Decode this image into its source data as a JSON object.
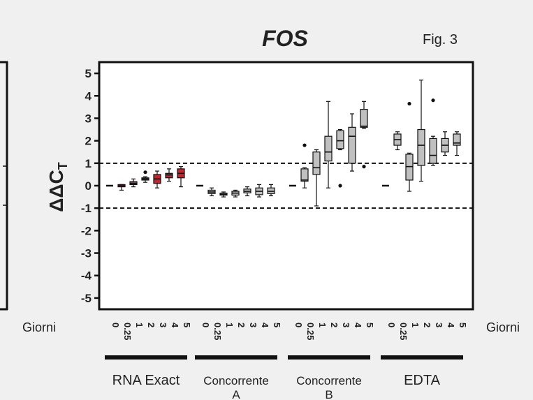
{
  "figure_label": "Fig. 3",
  "chart_data": {
    "type": "boxplot",
    "title": "FOS",
    "ylabel_main": "ΔΔC",
    "ylabel_sub": "T",
    "xlabel_left": "Giorni",
    "xlabel_right": "Giorni",
    "ylim": [
      -5.5,
      5.5
    ],
    "yticks": [
      5,
      4,
      3,
      2,
      1,
      0,
      -1,
      -2,
      -3,
      -4,
      -5
    ],
    "reference_lines": [
      1,
      -1
    ],
    "day_labels": [
      "0",
      "0.25",
      "1",
      "2",
      "3",
      "4",
      "5"
    ],
    "groups": [
      {
        "name": "RNA Exact",
        "fill": "#c8232c",
        "boxes": [
          {
            "day": "0",
            "min": 0,
            "q1": 0,
            "median": 0,
            "q3": 0,
            "max": 0,
            "outliers": []
          },
          {
            "day": "0.25",
            "min": -0.2,
            "q1": -0.05,
            "median": 0,
            "q3": 0.05,
            "max": 0.05,
            "outliers": []
          },
          {
            "day": "1",
            "min": -0.05,
            "q1": 0.05,
            "median": 0.1,
            "q3": 0.18,
            "max": 0.3,
            "outliers": []
          },
          {
            "day": "2",
            "min": 0.15,
            "q1": 0.25,
            "median": 0.3,
            "q3": 0.35,
            "max": 0.4,
            "outliers": [
              0.6
            ]
          },
          {
            "day": "3",
            "min": -0.1,
            "q1": 0.1,
            "median": 0.3,
            "q3": 0.5,
            "max": 0.65,
            "outliers": []
          },
          {
            "day": "4",
            "min": 0.2,
            "q1": 0.35,
            "median": 0.48,
            "q3": 0.55,
            "max": 0.75,
            "outliers": []
          },
          {
            "day": "5",
            "min": -0.05,
            "q1": 0.35,
            "median": 0.55,
            "q3": 0.75,
            "max": 0.85,
            "outliers": []
          }
        ]
      },
      {
        "name": "Concorrente A",
        "fill": "#c0c0c0",
        "boxes": [
          {
            "day": "0",
            "min": 0,
            "q1": 0,
            "median": 0,
            "q3": 0,
            "max": 0,
            "outliers": []
          },
          {
            "day": "0.25",
            "min": -0.45,
            "q1": -0.35,
            "median": -0.28,
            "q3": -0.2,
            "max": -0.1,
            "outliers": []
          },
          {
            "day": "1",
            "min": -0.5,
            "q1": -0.42,
            "median": -0.38,
            "q3": -0.33,
            "max": -0.28,
            "outliers": []
          },
          {
            "day": "2",
            "min": -0.5,
            "q1": -0.42,
            "median": -0.33,
            "q3": -0.25,
            "max": -0.2,
            "outliers": []
          },
          {
            "day": "3",
            "min": -0.45,
            "q1": -0.32,
            "median": -0.25,
            "q3": -0.15,
            "max": -0.05,
            "outliers": []
          },
          {
            "day": "4",
            "min": -0.5,
            "q1": -0.4,
            "median": -0.25,
            "q3": -0.1,
            "max": 0.05,
            "outliers": []
          },
          {
            "day": "5",
            "min": -0.45,
            "q1": -0.35,
            "median": -0.25,
            "q3": -0.1,
            "max": 0.05,
            "outliers": []
          }
        ]
      },
      {
        "name": "Concorrente B",
        "fill": "#c0c0c0",
        "boxes": [
          {
            "day": "0",
            "min": 0,
            "q1": 0,
            "median": 0,
            "q3": 0,
            "max": 0,
            "outliers": []
          },
          {
            "day": "0.25",
            "min": -0.1,
            "q1": 0.2,
            "median": 0.25,
            "q3": 0.75,
            "max": 0.8,
            "outliers": [
              1.8
            ]
          },
          {
            "day": "1",
            "min": -0.9,
            "q1": 0.5,
            "median": 0.8,
            "q3": 1.5,
            "max": 1.6,
            "outliers": []
          },
          {
            "day": "2",
            "min": -0.1,
            "q1": 1.1,
            "median": 1.5,
            "q3": 2.2,
            "max": 3.75,
            "outliers": []
          },
          {
            "day": "3",
            "min": 1.6,
            "q1": 1.65,
            "median": 2.0,
            "q3": 2.45,
            "max": 2.5,
            "outliers": [
              0
            ]
          },
          {
            "day": "4",
            "min": 0.65,
            "q1": 1.0,
            "median": 2.2,
            "q3": 2.6,
            "max": 3.2,
            "outliers": []
          },
          {
            "day": "5",
            "min": 2.55,
            "q1": 2.6,
            "median": 2.65,
            "q3": 3.4,
            "max": 3.75,
            "outliers": [
              0.85
            ]
          }
        ]
      },
      {
        "name": "EDTA",
        "fill": "#c0c0c0",
        "boxes": [
          {
            "day": "0",
            "min": 0,
            "q1": 0,
            "median": 0,
            "q3": 0,
            "max": 0,
            "outliers": []
          },
          {
            "day": "0.25",
            "min": 1.6,
            "q1": 1.8,
            "median": 2.05,
            "q3": 2.3,
            "max": 2.4,
            "outliers": []
          },
          {
            "day": "1",
            "min": -0.25,
            "q1": 0.25,
            "median": 0.85,
            "q3": 1.4,
            "max": 1.45,
            "outliers": [
              3.65
            ]
          },
          {
            "day": "2",
            "min": 0.2,
            "q1": 0.9,
            "median": 1.8,
            "q3": 2.5,
            "max": 4.7,
            "outliers": []
          },
          {
            "day": "3",
            "min": 0.9,
            "q1": 1.0,
            "median": 1.35,
            "q3": 2.1,
            "max": 2.2,
            "outliers": [
              3.8
            ]
          },
          {
            "day": "4",
            "min": 1.35,
            "q1": 1.5,
            "median": 1.8,
            "q3": 2.1,
            "max": 2.4,
            "outliers": []
          },
          {
            "day": "5",
            "min": 1.35,
            "q1": 1.8,
            "median": 1.9,
            "q3": 2.3,
            "max": 2.4,
            "outliers": []
          }
        ]
      }
    ],
    "group_labels": [
      {
        "line1": "RNA Exact",
        "line2": ""
      },
      {
        "line1": "Concorrente",
        "line2": "A"
      },
      {
        "line1": "Concorrente",
        "line2": "B"
      },
      {
        "line1": "EDTA",
        "line2": ""
      }
    ]
  }
}
